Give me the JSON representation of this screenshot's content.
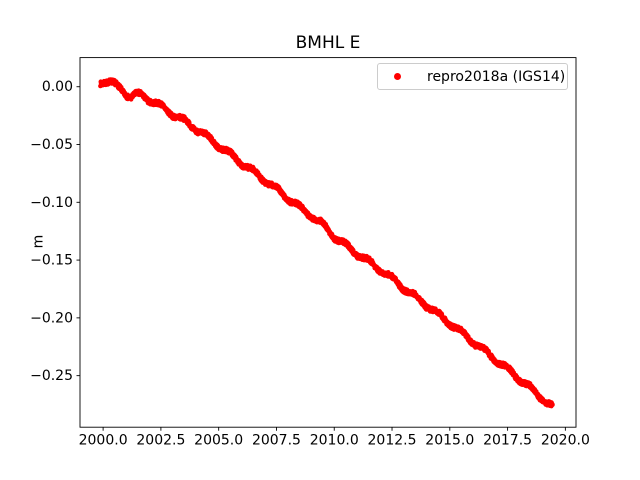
{
  "figure": {
    "background": "#ffffff"
  },
  "legend": {
    "label": "repro2018a (IGS14)",
    "marker_color": "#ff0000",
    "frame_color": "#cccccc"
  },
  "chart_data": {
    "type": "scatter",
    "title": "BMHL E",
    "xlabel": "",
    "ylabel": "m",
    "grid": false,
    "xlim": [
      1999.0,
      2020.46
    ],
    "ylim": [
      -0.2946,
      0.0252
    ],
    "xticks": {
      "values": [
        2000.0,
        2002.5,
        2005.0,
        2007.5,
        2010.0,
        2012.5,
        2015.0,
        2017.5,
        2020.0
      ],
      "labels": [
        "2000.0",
        "2002.5",
        "2005.0",
        "2007.5",
        "2010.0",
        "2012.5",
        "2015.0",
        "2017.5",
        "2020.0"
      ]
    },
    "yticks": {
      "values": [
        0.0,
        -0.05,
        -0.1,
        -0.15,
        -0.2,
        -0.25
      ],
      "labels": [
        "0.00",
        "−0.05",
        "−0.10",
        "−0.15",
        "−0.20",
        "−0.25"
      ]
    },
    "legend": {
      "position": "upper right",
      "entries": [
        {
          "label": "repro2018a (IGS14)",
          "color": "#ff0000",
          "marker": "point"
        }
      ]
    },
    "series": [
      {
        "name": "repro2018a (IGS14)",
        "color": "#ff0000",
        "marker": "point",
        "marker_radius_px": 2.2,
        "point_density_per_year": 120,
        "seasonal_amplitude_m": 0.002,
        "scatter_band_halfwidth_m": 0.002,
        "trend_points": [
          [
            1999.88,
            0.004
          ],
          [
            2000.05,
            0.005
          ],
          [
            2000.3,
            0.004
          ],
          [
            2000.55,
            0.001
          ],
          [
            2000.8,
            -0.002
          ],
          [
            2001.0,
            -0.006
          ],
          [
            2001.2,
            -0.009
          ],
          [
            2001.45,
            -0.007
          ],
          [
            2001.7,
            -0.0075
          ],
          [
            2002.0,
            -0.011
          ],
          [
            2002.5,
            -0.017
          ],
          [
            2003.0,
            -0.0235
          ],
          [
            2003.5,
            -0.0295
          ],
          [
            2004.0,
            -0.036
          ],
          [
            2004.5,
            -0.0435
          ],
          [
            2005.0,
            -0.051
          ],
          [
            2005.5,
            -0.0585
          ],
          [
            2006.0,
            -0.066
          ],
          [
            2006.5,
            -0.0735
          ],
          [
            2007.0,
            -0.081
          ],
          [
            2007.5,
            -0.0885
          ],
          [
            2008.0,
            -0.0965
          ],
          [
            2008.5,
            -0.1045
          ],
          [
            2009.0,
            -0.1115
          ],
          [
            2009.5,
            -0.119
          ],
          [
            2010.0,
            -0.1295
          ],
          [
            2010.5,
            -0.1375
          ],
          [
            2011.0,
            -0.1445
          ],
          [
            2011.5,
            -0.1515
          ],
          [
            2012.0,
            -0.1585
          ],
          [
            2012.5,
            -0.166
          ],
          [
            2013.0,
            -0.174
          ],
          [
            2013.5,
            -0.1815
          ],
          [
            2014.0,
            -0.189
          ],
          [
            2014.5,
            -0.197
          ],
          [
            2015.0,
            -0.2045
          ],
          [
            2015.5,
            -0.2125
          ],
          [
            2016.0,
            -0.2205
          ],
          [
            2016.5,
            -0.2285
          ],
          [
            2017.0,
            -0.2365
          ],
          [
            2017.5,
            -0.2445
          ],
          [
            2018.0,
            -0.2525
          ],
          [
            2018.5,
            -0.261
          ],
          [
            2019.0,
            -0.2695
          ],
          [
            2019.2,
            -0.273
          ],
          [
            2019.45,
            -0.277
          ]
        ]
      }
    ]
  }
}
